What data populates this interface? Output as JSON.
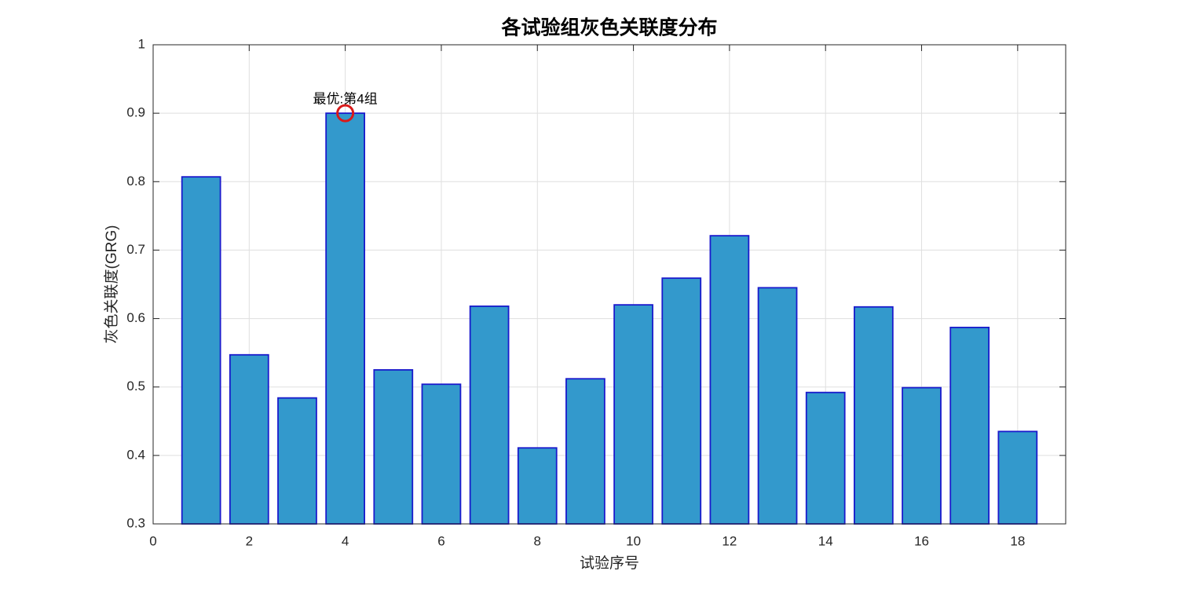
{
  "chart_data": {
    "type": "bar",
    "title": "各试验组灰色关联度分布",
    "xlabel": "试验序号",
    "ylabel": "灰色关联度(GRG)",
    "x": [
      1,
      2,
      3,
      4,
      5,
      6,
      7,
      8,
      9,
      10,
      11,
      12,
      13,
      14,
      15,
      16,
      17,
      18
    ],
    "values": [
      0.807,
      0.547,
      0.484,
      0.9,
      0.525,
      0.504,
      0.618,
      0.411,
      0.512,
      0.62,
      0.659,
      0.721,
      0.645,
      0.492,
      0.617,
      0.499,
      0.587,
      0.435
    ],
    "color": "#3399cc",
    "edgecolor": "#1a1acc",
    "xlim": [
      0,
      19
    ],
    "xticks": [
      0,
      2,
      4,
      6,
      8,
      10,
      12,
      14,
      16,
      18
    ],
    "ylim": [
      0.3,
      1
    ],
    "yticks": [
      0.3,
      0.4,
      0.5,
      0.6,
      0.7,
      0.8,
      0.9,
      1
    ],
    "grid": true,
    "annotations": [
      {
        "text": "最优:第4组",
        "x": 4,
        "y": 0.9,
        "color": "#d91a1a"
      }
    ]
  }
}
